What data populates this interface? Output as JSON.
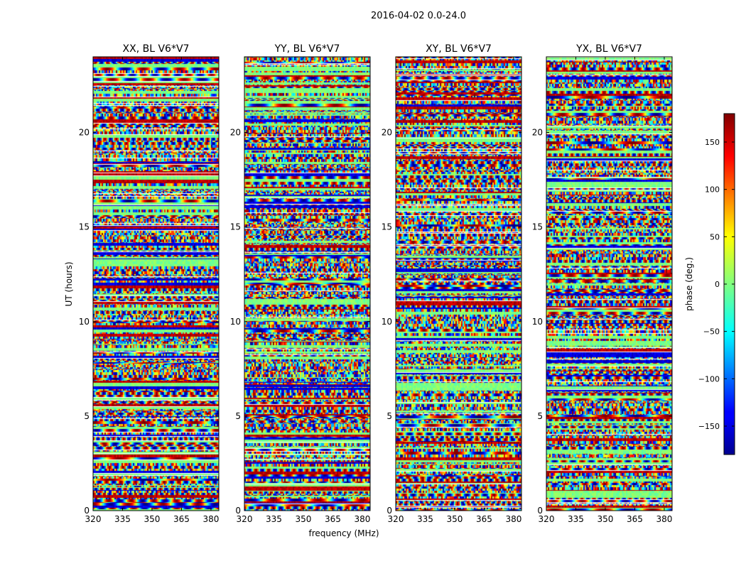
{
  "chart_data": {
    "type": "heatmap",
    "suptitle": "2016-04-02 0.0-24.0",
    "xlabel": "frequency (MHz)",
    "ylabel": "UT (hours)",
    "xlim": [
      320,
      384
    ],
    "ylim": [
      0,
      24
    ],
    "x_ticks": [
      320,
      335,
      350,
      365,
      380
    ],
    "y_ticks": [
      0,
      5,
      10,
      15,
      20
    ],
    "panels": [
      {
        "title": "XX, BL V6*V7"
      },
      {
        "title": "YY, BL V6*V7"
      },
      {
        "title": "XY, BL V6*V7"
      },
      {
        "title": "YX, BL V6*V7"
      }
    ],
    "colorbar": {
      "label": "phase (deg.)",
      "range": [
        -180,
        180
      ],
      "ticks": [
        -150,
        -100,
        -50,
        0,
        50,
        100,
        150
      ],
      "colormap": "jet"
    }
  }
}
